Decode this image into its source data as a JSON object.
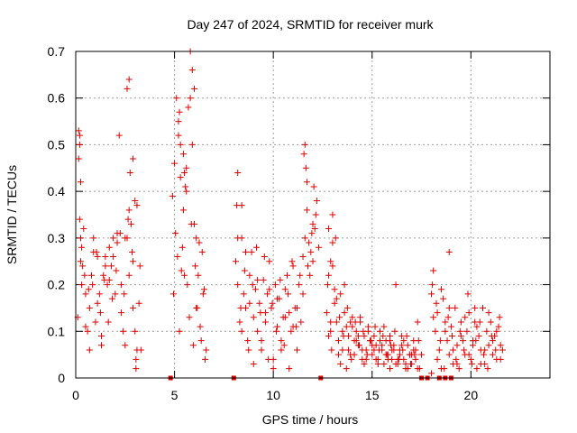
{
  "chart_data": {
    "type": "scatter",
    "title": "Day 247 of 2024, SRMTID for receiver murk",
    "xlabel": "GPS time / hours",
    "ylabel": "SRMTID / TECUs",
    "xlim": [
      0,
      24
    ],
    "ylim": [
      0,
      0.7
    ],
    "xticks": [
      0,
      5,
      10,
      15,
      20
    ],
    "yticks": [
      0,
      0.1,
      0.2,
      0.3,
      0.4,
      0.5,
      0.6,
      0.7
    ],
    "grid": true,
    "marker": "+",
    "series": [
      {
        "name": "SRMTID",
        "color": "#e00000",
        "x": [
          0.1,
          0.15,
          0.2,
          0.25,
          0.3,
          0.35,
          0.4,
          0.5,
          0.6,
          0.7,
          0.8,
          0.9,
          1.0,
          1.1,
          1.2,
          1.3,
          1.4,
          1.5,
          1.6,
          1.7,
          1.8,
          1.9,
          2.0,
          2.1,
          2.2,
          2.3,
          2.4,
          2.5,
          2.6,
          2.7,
          2.8,
          2.9,
          3.0,
          3.1,
          3.2,
          3.3,
          0.2,
          0.3,
          0.5,
          0.7,
          0.9,
          1.1,
          1.3,
          1.5,
          1.7,
          1.9,
          2.1,
          2.3,
          2.5,
          2.7,
          2.9,
          3.1,
          0.25,
          0.45,
          0.65,
          0.85,
          1.05,
          1.25,
          1.45,
          1.65,
          1.85,
          2.05,
          2.25,
          2.45,
          2.65,
          2.85,
          3.05,
          3.25,
          0.15,
          0.2,
          0.25,
          2.6,
          2.7,
          2.75,
          2.9,
          3.0,
          3.05,
          4.9,
          5.0,
          5.1,
          5.2,
          5.3,
          5.4,
          5.5,
          5.6,
          5.7,
          5.8,
          5.9,
          6.0,
          6.1,
          6.2,
          6.3,
          6.4,
          6.5,
          6.6,
          4.95,
          5.05,
          5.15,
          5.25,
          5.35,
          5.45,
          5.55,
          5.65,
          5.75,
          5.85,
          5.95,
          6.05,
          6.15,
          6.25,
          6.35,
          6.45,
          6.55,
          5.2,
          5.3,
          5.5,
          5.6,
          5.8,
          5.9,
          6.0,
          6.1,
          5.25,
          5.45,
          8.1,
          8.2,
          8.3,
          8.4,
          8.5,
          8.6,
          8.7,
          8.8,
          8.9,
          9.0,
          9.1,
          9.2,
          9.3,
          9.4,
          9.5,
          9.6,
          9.7,
          9.8,
          9.9,
          10.0,
          10.1,
          10.2,
          10.3,
          10.4,
          10.5,
          10.6,
          10.7,
          10.8,
          10.9,
          11.0,
          11.1,
          11.2,
          11.3,
          11.4,
          11.5,
          8.15,
          8.35,
          8.55,
          8.75,
          8.95,
          9.15,
          9.35,
          9.55,
          9.75,
          9.95,
          10.15,
          10.35,
          10.55,
          10.75,
          10.95,
          11.15,
          11.35,
          8.2,
          8.4,
          8.6,
          8.8,
          9.0,
          9.2,
          9.4,
          9.6,
          9.8,
          10.0,
          10.2,
          10.4,
          10.6,
          10.8,
          11.0,
          11.2,
          11.5,
          11.6,
          11.7,
          11.8,
          11.9,
          12.0,
          12.1,
          12.2,
          12.3,
          11.55,
          11.65,
          11.75,
          11.85,
          11.95,
          12.05,
          12.15,
          11.6,
          11.7,
          12.0,
          8.2,
          8.4,
          12.7,
          12.8,
          12.9,
          13.0,
          13.1,
          13.2,
          13.3,
          13.4,
          13.5,
          13.6,
          13.7,
          13.8,
          13.9,
          14.0,
          14.1,
          14.2,
          14.3,
          14.4,
          14.5,
          14.6,
          14.7,
          14.8,
          14.9,
          15.0,
          15.1,
          15.2,
          15.3,
          15.4,
          15.5,
          15.6,
          15.7,
          15.8,
          15.9,
          16.0,
          16.1,
          16.2,
          16.3,
          16.4,
          16.5,
          16.6,
          16.7,
          16.8,
          16.9,
          17.0,
          17.1,
          17.2,
          17.3,
          17.4,
          17.5,
          12.75,
          12.95,
          13.15,
          13.35,
          13.55,
          13.75,
          13.95,
          14.15,
          14.35,
          14.55,
          14.75,
          14.95,
          15.15,
          15.35,
          15.55,
          15.75,
          15.95,
          16.15,
          16.35,
          16.55,
          16.75,
          16.95,
          17.15,
          17.35,
          12.8,
          13.0,
          13.2,
          13.4,
          13.6,
          13.8,
          14.0,
          14.2,
          14.4,
          14.6,
          14.8,
          15.0,
          15.2,
          15.4,
          15.6,
          15.8,
          16.0,
          16.2,
          16.4,
          16.6,
          16.8,
          17.0,
          17.2,
          12.9,
          13.1,
          13.3,
          13.5,
          13.7,
          13.9,
          14.1,
          14.3,
          14.5,
          14.7,
          14.9,
          15.1,
          15.3,
          15.5,
          15.7,
          15.9,
          16.1,
          16.3,
          16.5,
          16.7,
          16.9,
          17.1,
          17.3,
          12.8,
          12.9,
          13.0,
          15.9,
          18.0,
          18.1,
          18.2,
          18.3,
          18.4,
          18.5,
          18.6,
          18.7,
          18.8,
          18.9,
          19.0,
          19.1,
          19.2,
          19.3,
          19.4,
          19.5,
          19.6,
          19.7,
          19.8,
          19.9,
          20.0,
          20.1,
          20.2,
          20.3,
          20.4,
          20.5,
          20.6,
          20.7,
          20.8,
          20.9,
          21.0,
          21.1,
          21.2,
          21.3,
          21.4,
          21.5,
          21.6,
          18.05,
          18.25,
          18.45,
          18.65,
          18.85,
          19.05,
          19.25,
          19.45,
          19.65,
          19.85,
          20.05,
          20.25,
          20.45,
          20.65,
          20.85,
          21.05,
          21.25,
          21.45,
          18.1,
          18.3,
          18.5,
          18.7,
          18.9,
          19.1,
          19.3,
          19.5,
          19.7,
          19.9,
          20.1,
          20.3,
          20.5,
          20.7,
          20.9,
          21.1,
          21.3,
          21.5,
          18.9,
          18.0,
          20.2,
          4.8,
          8.0,
          12.4,
          17.5,
          17.8,
          18.4,
          18.7,
          19.0
        ],
        "y": [
          0.13,
          0.47,
          0.52,
          0.3,
          0.2,
          0.24,
          0.32,
          0.18,
          0.1,
          0.15,
          0.22,
          0.27,
          0.12,
          0.26,
          0.18,
          0.07,
          0.22,
          0.26,
          0.2,
          0.28,
          0.24,
          0.3,
          0.18,
          0.29,
          0.52,
          0.2,
          0.1,
          0.07,
          0.3,
          0.22,
          0.33,
          0.25,
          0.1,
          0.37,
          0.16,
          0.06,
          0.34,
          0.28,
          0.11,
          0.06,
          0.3,
          0.16,
          0.09,
          0.24,
          0.21,
          0.26,
          0.31,
          0.14,
          0.3,
          0.36,
          0.15,
          0.06,
          0.25,
          0.22,
          0.19,
          0.2,
          0.27,
          0.14,
          0.21,
          0.12,
          0.17,
          0.23,
          0.31,
          0.18,
          0.34,
          0.27,
          0.04,
          0.24,
          0.53,
          0.5,
          0.42,
          0.62,
          0.64,
          0.44,
          0.47,
          0.38,
          0.02,
          0.39,
          0.46,
          0.6,
          0.52,
          0.43,
          0.28,
          0.22,
          0.45,
          0.58,
          0.6,
          0.5,
          0.33,
          0.15,
          0.22,
          0.11,
          0.27,
          0.19,
          0.06,
          0.18,
          0.31,
          0.26,
          0.1,
          0.23,
          0.36,
          0.41,
          0.2,
          0.13,
          0.33,
          0.07,
          0.24,
          0.15,
          0.29,
          0.08,
          0.18,
          0.04,
          0.55,
          0.5,
          0.44,
          0.4,
          0.7,
          0.66,
          0.62,
          0.3,
          0.57,
          0.48,
          0.25,
          0.2,
          0.12,
          0.3,
          0.18,
          0.15,
          0.08,
          0.22,
          0.27,
          0.13,
          0.19,
          0.1,
          0.16,
          0.06,
          0.21,
          0.12,
          0.18,
          0.25,
          0.15,
          0.04,
          0.2,
          0.11,
          0.17,
          0.08,
          0.13,
          0.19,
          0.22,
          0.14,
          0.1,
          0.24,
          0.15,
          0.06,
          0.2,
          0.12,
          0.18,
          0.37,
          0.15,
          0.23,
          0.06,
          0.2,
          0.28,
          0.14,
          0.26,
          0.04,
          0.16,
          0.1,
          0.21,
          0.07,
          0.18,
          0.25,
          0.11,
          0.22,
          0.3,
          0.1,
          0.27,
          0.16,
          0.03,
          0.21,
          0.08,
          0.14,
          0.19,
          0.02,
          0.17,
          0.06,
          0.13,
          0.02,
          0.11,
          0.15,
          0.26,
          0.3,
          0.36,
          0.29,
          0.27,
          0.33,
          0.32,
          0.38,
          0.28,
          0.48,
          0.45,
          0.24,
          0.22,
          0.31,
          0.41,
          0.35,
          0.5,
          0.42,
          0.25,
          0.44,
          0.37,
          0.14,
          0.22,
          0.1,
          0.35,
          0.16,
          0.12,
          0.08,
          0.18,
          0.06,
          0.2,
          0.11,
          0.09,
          0.05,
          0.13,
          0.08,
          0.1,
          0.07,
          0.12,
          0.04,
          0.09,
          0.06,
          0.11,
          0.08,
          0.05,
          0.09,
          0.07,
          0.04,
          0.1,
          0.06,
          0.03,
          0.08,
          0.05,
          0.09,
          0.04,
          0.07,
          0.2,
          0.03,
          0.06,
          0.09,
          0.04,
          0.02,
          0.07,
          0.05,
          0.03,
          0.08,
          0.06,
          0.12,
          0.02,
          0.05,
          0.2,
          0.06,
          0.3,
          0.13,
          0.09,
          0.15,
          0.04,
          0.12,
          0.07,
          0.1,
          0.05,
          0.08,
          0.11,
          0.06,
          0.09,
          0.05,
          0.07,
          0.1,
          0.04,
          0.06,
          0.09,
          0.03,
          0.05,
          0.08,
          0.09,
          0.24,
          0.17,
          0.03,
          0.14,
          0.06,
          0.11,
          0.08,
          0.13,
          0.03,
          0.1,
          0.07,
          0.04,
          0.08,
          0.11,
          0.04,
          0.06,
          0.03,
          0.05,
          0.08,
          0.02,
          0.05,
          0.04,
          0.12,
          0.19,
          0.05,
          0.1,
          0.02,
          0.12,
          0.05,
          0.09,
          0.06,
          0.04,
          0.08,
          0.06,
          0.03,
          0.07,
          0.05,
          0.02,
          0.06,
          0.04,
          0.07,
          0.03,
          0.05,
          0.06,
          0.02,
          0.32,
          0.25,
          0.29,
          0.08,
          0.18,
          0.23,
          0.1,
          0.14,
          0.06,
          0.02,
          0.17,
          0.12,
          0.08,
          0.05,
          0.11,
          0.03,
          0.15,
          0.07,
          0.02,
          0.12,
          0.08,
          0.05,
          0.1,
          0.14,
          0.04,
          0.07,
          0.12,
          0.02,
          0.09,
          0.06,
          0.15,
          0.03,
          0.1,
          0.07,
          0.12,
          0.05,
          0.09,
          0.04,
          0.11,
          0.07,
          0.06,
          0.2,
          0.16,
          0.08,
          0.02,
          0.13,
          0.09,
          0.04,
          0.1,
          0.06,
          0.18,
          0.03,
          0.08,
          0.12,
          0.05,
          0.02,
          0.09,
          0.06,
          0.13,
          0.13,
          0.04,
          0.19,
          0.1,
          0.15,
          0.06,
          0.03,
          0.09,
          0.13,
          0.05,
          0.08,
          0.11,
          0.03,
          0.06,
          0.14,
          0.08,
          0.1,
          0.04,
          0.27,
          0.01,
          0.15,
          0,
          0,
          0,
          0,
          0,
          0,
          0,
          0
        ]
      }
    ]
  }
}
